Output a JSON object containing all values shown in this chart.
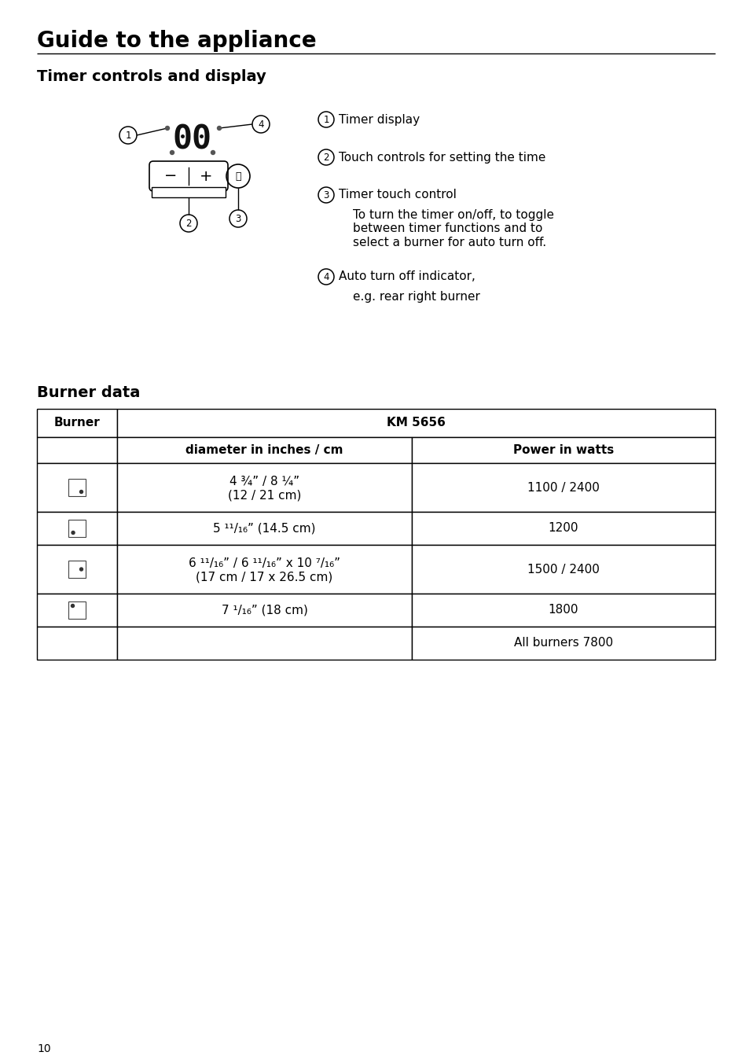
{
  "page_title": "Guide to the appliance",
  "section1_title": "Timer controls and display",
  "section2_title": "Burner data",
  "ann1": "Timer display",
  "ann2": "Touch controls for setting the time",
  "ann3a": "Timer touch control",
  "ann3b": "To turn the timer on/off, to toggle\nbetween timer functions and to\nselect a burner for auto turn off.",
  "ann4a": "Auto turn off indicator,",
  "ann4b": "e.g. rear right burner",
  "col0_hdr": "Burner",
  "col12_hdr": "KM 5656",
  "col1_sub": "diameter in inches / cm",
  "col2_sub": "Power in watts",
  "r1d1": "4 ¾” / 8 ¼”",
  "r1d2": "(12 / 21 cm)",
  "r1p": "1100 / 2400",
  "r2d": "5 ¹¹/₁₆” (14.5 cm)",
  "r2p": "1200",
  "r3d1": "6 ¹¹/₁₆” / 6 ¹¹/₁₆” x 10 ⁷/₁₆”",
  "r3d2": "(17 cm / 17 x 26.5 cm)",
  "r3p": "1500 / 2400",
  "r4d": "7 ¹/₁₆” (18 cm)",
  "r4p": "1800",
  "r5p": "All burners 7800",
  "page_num": "10"
}
